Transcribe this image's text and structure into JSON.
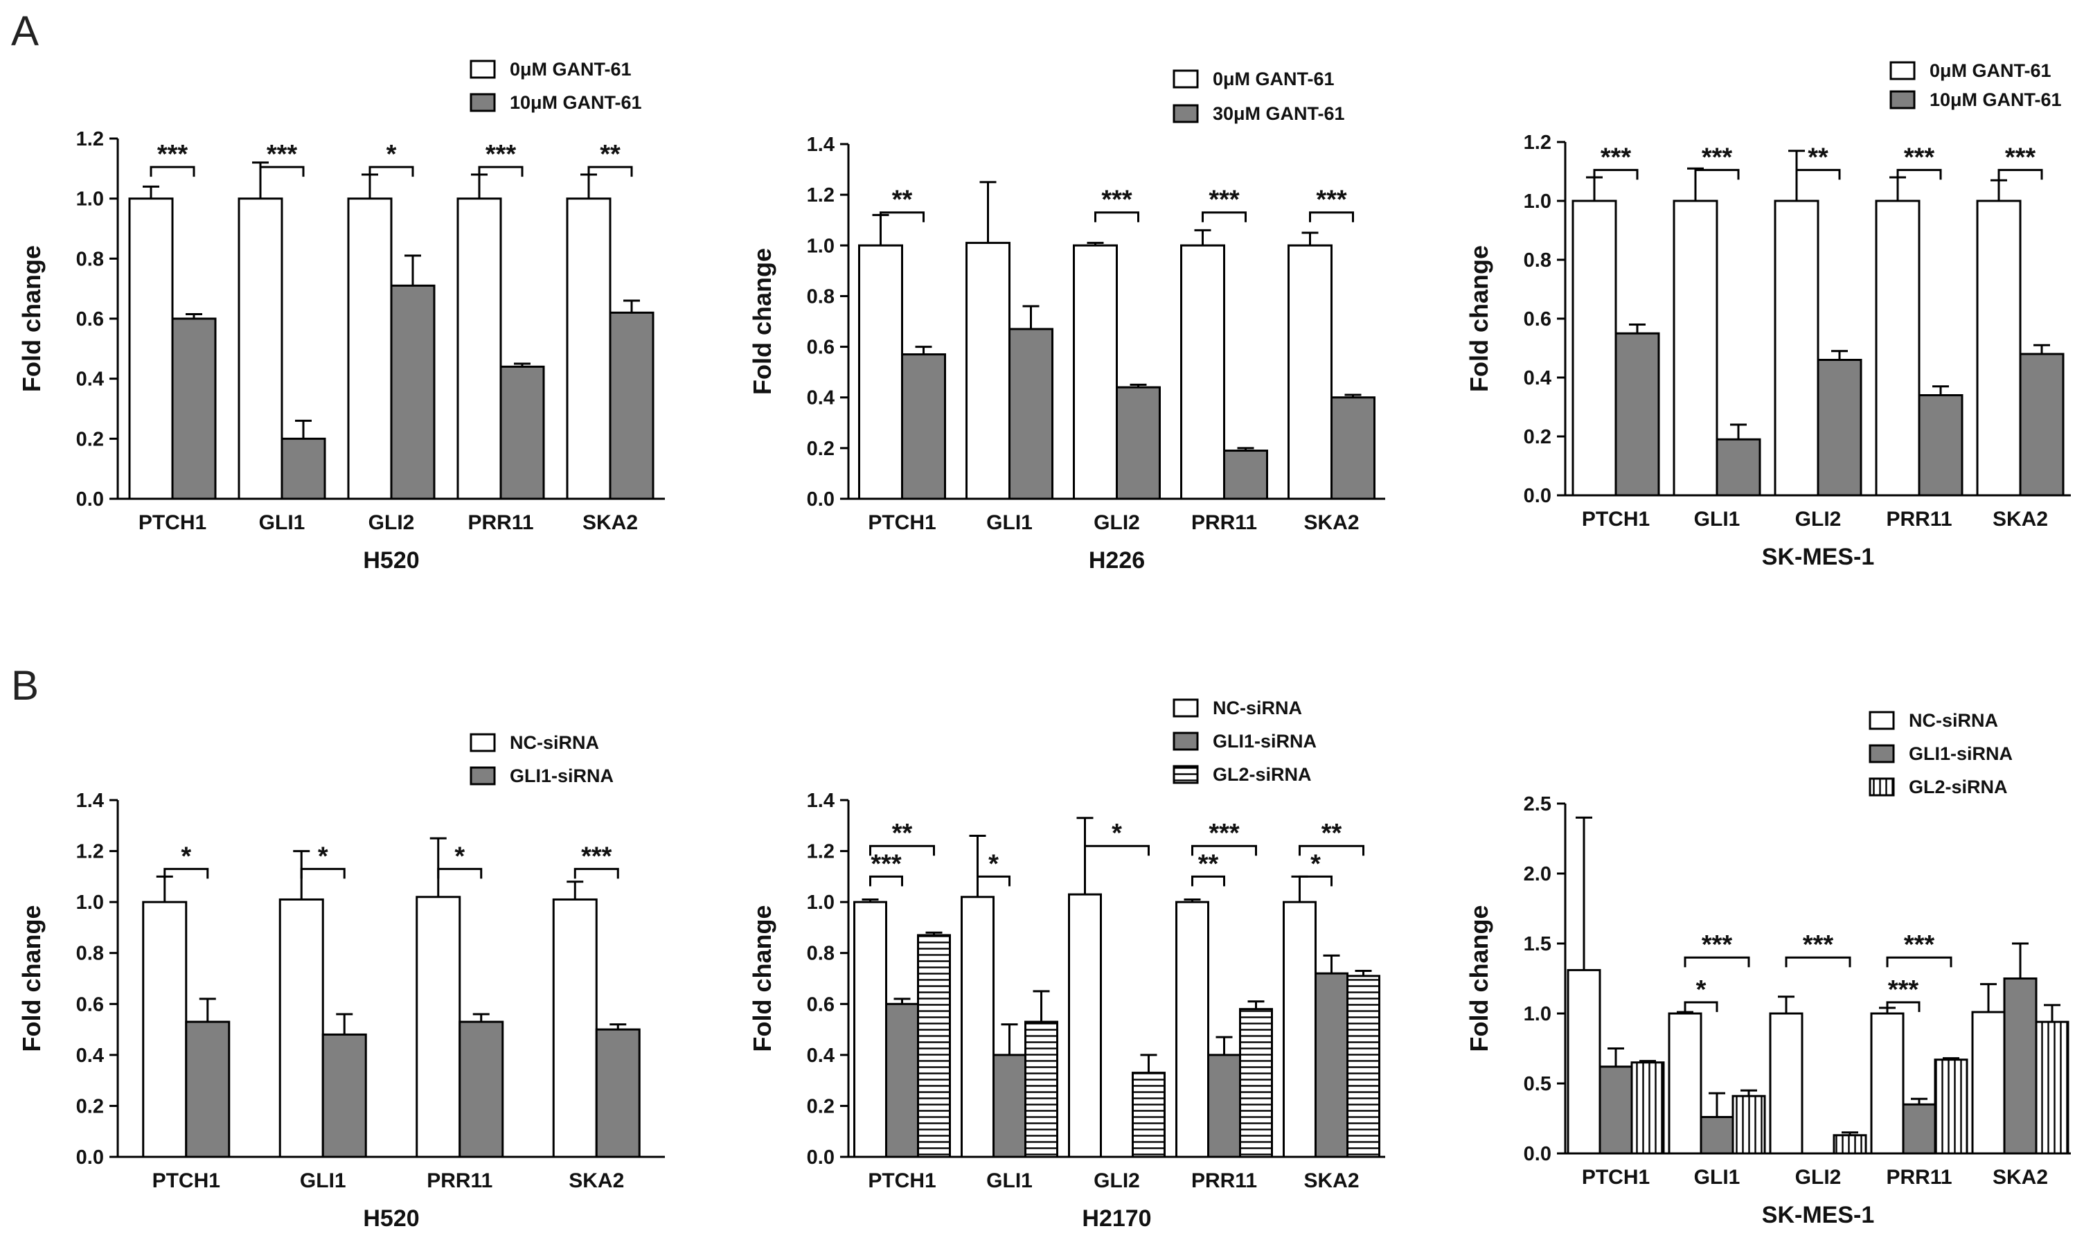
{
  "panels": [
    {
      "letter": "A"
    },
    {
      "letter": "B"
    }
  ],
  "colors": {
    "white_bar": "#ffffff",
    "gray_bar": "#808080",
    "outline": "#000000"
  },
  "chart_data": [
    {
      "type": "bar",
      "title": "",
      "subtitle": "H520",
      "ylabel": "Fold change",
      "xlabel": "",
      "ylim": [
        0,
        1.2
      ],
      "yticks": [
        "0.0",
        "0.2",
        "0.4",
        "0.6",
        "0.8",
        "1.0",
        "1.2"
      ],
      "categories": [
        "PTCH1",
        "GLI1",
        "GLI2",
        "PRR11",
        "SKA2"
      ],
      "legend_position": "top-right",
      "series": [
        {
          "name": "0μM GANT-61",
          "pattern": "white",
          "values": [
            1.0,
            1.0,
            1.0,
            1.0,
            1.0
          ],
          "errors": [
            0.04,
            0.12,
            0.08,
            0.08,
            0.08
          ]
        },
        {
          "name": "10μM GANT-61",
          "pattern": "gray",
          "values": [
            0.6,
            0.2,
            0.71,
            0.44,
            0.62
          ],
          "errors": [
            0.015,
            0.06,
            0.1,
            0.01,
            0.04
          ]
        }
      ],
      "significance": [
        {
          "category": 0,
          "from": 0,
          "to": 1,
          "label": "***"
        },
        {
          "category": 1,
          "from": 0,
          "to": 1,
          "label": "***"
        },
        {
          "category": 2,
          "from": 0,
          "to": 1,
          "label": "*"
        },
        {
          "category": 3,
          "from": 0,
          "to": 1,
          "label": "***"
        },
        {
          "category": 4,
          "from": 0,
          "to": 1,
          "label": "**"
        }
      ]
    },
    {
      "type": "bar",
      "title": "",
      "subtitle": "H226",
      "ylabel": "Fold change",
      "xlabel": "",
      "ylim": [
        0,
        1.4
      ],
      "yticks": [
        "0.0",
        "0.2",
        "0.4",
        "0.6",
        "0.8",
        "1.0",
        "1.2",
        "1.4"
      ],
      "categories": [
        "PTCH1",
        "GLI1",
        "GLI2",
        "PRR11",
        "SKA2"
      ],
      "legend_position": "top-right",
      "series": [
        {
          "name": "0μM GANT-61",
          "pattern": "white",
          "values": [
            1.0,
            1.01,
            1.0,
            1.0,
            1.0
          ],
          "errors": [
            0.12,
            0.24,
            0.01,
            0.06,
            0.05
          ]
        },
        {
          "name": "30μM GANT-61",
          "pattern": "gray",
          "values": [
            0.57,
            0.67,
            0.44,
            0.19,
            0.4
          ],
          "errors": [
            0.03,
            0.09,
            0.01,
            0.01,
            0.01
          ]
        }
      ],
      "significance": [
        {
          "category": 0,
          "from": 0,
          "to": 1,
          "label": "**"
        },
        {
          "category": 2,
          "from": 0,
          "to": 1,
          "label": "***"
        },
        {
          "category": 3,
          "from": 0,
          "to": 1,
          "label": "***"
        },
        {
          "category": 4,
          "from": 0,
          "to": 1,
          "label": "***"
        }
      ]
    },
    {
      "type": "bar",
      "title": "",
      "subtitle": "SK-MES-1",
      "ylabel": "Fold change",
      "xlabel": "",
      "ylim": [
        0,
        1.2
      ],
      "yticks": [
        "0.0",
        "0.2",
        "0.4",
        "0.6",
        "0.8",
        "1.0",
        "1.2"
      ],
      "categories": [
        "PTCH1",
        "GLI1",
        "GLI2",
        "PRR11",
        "SKA2"
      ],
      "legend_position": "top-right",
      "series": [
        {
          "name": "0μM GANT-61",
          "pattern": "white",
          "values": [
            1.0,
            1.0,
            1.0,
            1.0,
            1.0
          ],
          "errors": [
            0.08,
            0.11,
            0.17,
            0.08,
            0.07
          ]
        },
        {
          "name": "10μM GANT-61",
          "pattern": "gray",
          "values": [
            0.55,
            0.19,
            0.46,
            0.34,
            0.48
          ],
          "errors": [
            0.03,
            0.05,
            0.03,
            0.03,
            0.03
          ]
        }
      ],
      "significance": [
        {
          "category": 0,
          "from": 0,
          "to": 1,
          "label": "***"
        },
        {
          "category": 1,
          "from": 0,
          "to": 1,
          "label": "***"
        },
        {
          "category": 2,
          "from": 0,
          "to": 1,
          "label": "**"
        },
        {
          "category": 3,
          "from": 0,
          "to": 1,
          "label": "***"
        },
        {
          "category": 4,
          "from": 0,
          "to": 1,
          "label": "***"
        }
      ]
    },
    {
      "type": "bar",
      "title": "",
      "subtitle": "H520",
      "ylabel": "Fold change",
      "xlabel": "",
      "ylim": [
        0,
        1.4
      ],
      "yticks": [
        "0.0",
        "0.2",
        "0.4",
        "0.6",
        "0.8",
        "1.0",
        "1.2",
        "1.4"
      ],
      "categories": [
        "PTCH1",
        "GLI1",
        "PRR11",
        "SKA2"
      ],
      "legend_position": "top-right",
      "series": [
        {
          "name": "NC-siRNA",
          "pattern": "white",
          "values": [
            1.0,
            1.01,
            1.02,
            1.01
          ],
          "errors": [
            0.1,
            0.19,
            0.23,
            0.07
          ]
        },
        {
          "name": "GLI1-siRNA",
          "pattern": "gray",
          "values": [
            0.53,
            0.48,
            0.53,
            0.5
          ],
          "errors": [
            0.09,
            0.08,
            0.03,
            0.02
          ]
        }
      ],
      "significance": [
        {
          "category": 0,
          "from": 0,
          "to": 1,
          "label": "*"
        },
        {
          "category": 1,
          "from": 0,
          "to": 1,
          "label": "*"
        },
        {
          "category": 2,
          "from": 0,
          "to": 1,
          "label": "*"
        },
        {
          "category": 3,
          "from": 0,
          "to": 1,
          "label": "***"
        }
      ]
    },
    {
      "type": "bar",
      "title": "",
      "subtitle": "H2170",
      "ylabel": "Fold change",
      "xlabel": "",
      "ylim": [
        0,
        1.4
      ],
      "yticks": [
        "0.0",
        "0.2",
        "0.4",
        "0.6",
        "0.8",
        "1.0",
        "1.2",
        "1.4"
      ],
      "categories": [
        "PTCH1",
        "GLI1",
        "GLI2",
        "PRR11",
        "SKA2"
      ],
      "legend_position": "top-right",
      "series": [
        {
          "name": "NC-siRNA",
          "pattern": "white",
          "values": [
            1.0,
            1.02,
            1.03,
            1.0,
            1.0
          ],
          "errors": [
            0.01,
            0.24,
            0.3,
            0.01,
            0.1
          ]
        },
        {
          "name": "GLI1-siRNA",
          "pattern": "gray",
          "values": [
            0.6,
            0.4,
            null,
            0.4,
            0.72
          ],
          "errors": [
            0.02,
            0.12,
            0,
            0.07,
            0.07
          ]
        },
        {
          "name": "GL2-siRNA",
          "pattern": "hstripe",
          "values": [
            0.87,
            0.53,
            0.33,
            0.58,
            0.71
          ],
          "errors": [
            0.01,
            0.12,
            0.07,
            0.03,
            0.02
          ]
        }
      ],
      "significance": [
        {
          "category": 0,
          "from": 0,
          "to": 1,
          "label": "***",
          "level": 0
        },
        {
          "category": 0,
          "from": 0,
          "to": 2,
          "label": "**",
          "level": 1
        },
        {
          "category": 1,
          "from": 0,
          "to": 1,
          "label": "*",
          "level": 0
        },
        {
          "category": 2,
          "from": 0,
          "to": 2,
          "label": "*",
          "level": 1
        },
        {
          "category": 3,
          "from": 0,
          "to": 1,
          "label": "**",
          "level": 0
        },
        {
          "category": 3,
          "from": 0,
          "to": 2,
          "label": "***",
          "level": 1
        },
        {
          "category": 4,
          "from": 0,
          "to": 1,
          "label": "*",
          "level": 0
        },
        {
          "category": 4,
          "from": 0,
          "to": 2,
          "label": "**",
          "level": 1
        }
      ]
    },
    {
      "type": "bar",
      "title": "",
      "subtitle": "SK-MES-1",
      "ylabel": "Fold change",
      "xlabel": "",
      "ylim": [
        0,
        2.5
      ],
      "yticks": [
        "0.0",
        "0.5",
        "1.0",
        "1.5",
        "2.0",
        "2.5"
      ],
      "categories": [
        "PTCH1",
        "GLI1",
        "GLI2",
        "PRR11",
        "SKA2"
      ],
      "legend_position": "top-right",
      "series": [
        {
          "name": "NC-siRNA",
          "pattern": "white",
          "values": [
            1.31,
            1.0,
            1.0,
            1.0,
            1.01
          ],
          "errors": [
            1.09,
            0.01,
            0.12,
            0.04,
            0.2
          ]
        },
        {
          "name": "GLI1-siRNA",
          "pattern": "gray",
          "values": [
            0.62,
            0.26,
            null,
            0.35,
            1.25
          ],
          "errors": [
            0.13,
            0.17,
            0,
            0.04,
            0.25
          ]
        },
        {
          "name": "GL2-siRNA",
          "pattern": "vstripe",
          "values": [
            0.65,
            0.41,
            0.13,
            0.67,
            0.94
          ],
          "errors": [
            0.01,
            0.04,
            0.02,
            0.01,
            0.12
          ]
        }
      ],
      "significance": [
        {
          "category": 1,
          "from": 0,
          "to": 1,
          "label": "*",
          "level": 0
        },
        {
          "category": 1,
          "from": 0,
          "to": 2,
          "label": "***",
          "level": 1
        },
        {
          "category": 2,
          "from": 0,
          "to": 2,
          "label": "***",
          "level": 1
        },
        {
          "category": 3,
          "from": 0,
          "to": 1,
          "label": "***",
          "level": 0
        },
        {
          "category": 3,
          "from": 0,
          "to": 2,
          "label": "***",
          "level": 1
        }
      ]
    }
  ]
}
